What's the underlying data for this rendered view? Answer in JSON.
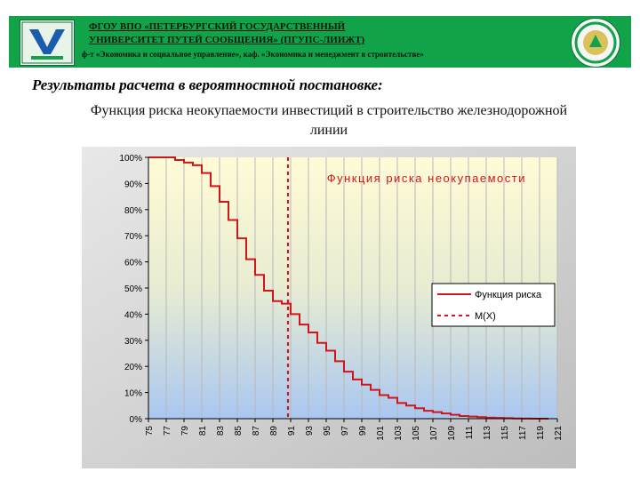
{
  "banner": {
    "line1": "ФГОУ ВПО «ПЕТЕРБУРГСКИЙ ГОСУДАРСТВЕННЫЙ",
    "line2": "УНИВЕРСИТЕТ ПУТЕЙ СООБЩЕНИЯ» (ПГУПС-ЛИИЖТ)",
    "line3": "ф-т «Экономика и социальное управление», каф. «Экономика и менеджмент в строительстве»",
    "left_logo_icon": "university-emblem-icon",
    "right_logo_icon": "anniversary-seal-icon"
  },
  "heading": "Результаты расчета в вероятностной постановке:",
  "subtitle": "Функция риска неокупаемости инвестиций в строительство железнодорожной линии",
  "colors": {
    "banner": "#11a24a",
    "series": "#d0161a",
    "plot_top": "#fffbd6",
    "plot_bottom": "#aac8f0"
  },
  "chart_data": {
    "type": "line",
    "title": "Функция риска неокупаемости",
    "xlabel": "",
    "ylabel": "",
    "xlim": [
      75,
      121
    ],
    "ylim": [
      0,
      100
    ],
    "x_ticks": [
      "75",
      "77",
      "79",
      "81",
      "83",
      "85",
      "87",
      "89",
      "91",
      "93",
      "95",
      "97",
      "99",
      "101",
      "103",
      "105",
      "107",
      "109",
      "111",
      "113",
      "115",
      "117",
      "119",
      "121"
    ],
    "y_ticks": [
      "0%",
      "10%",
      "20%",
      "30%",
      "40%",
      "50%",
      "60%",
      "70%",
      "80%",
      "90%",
      "100%"
    ],
    "grid": "vertical",
    "legend": {
      "position": "right",
      "entries": [
        "Функция риска",
        "M(X)"
      ]
    },
    "series": [
      {
        "name": "Функция риска",
        "style": "step",
        "x": [
          75,
          76,
          78,
          79,
          80,
          81,
          82,
          83,
          84,
          85,
          86,
          87,
          88,
          89,
          90,
          91,
          92,
          93,
          94,
          95,
          96,
          97,
          98,
          99,
          100,
          101,
          102,
          103,
          104,
          105,
          106,
          107,
          108,
          109,
          110,
          111,
          112,
          113,
          114,
          115,
          116,
          117,
          118,
          119,
          120
        ],
        "y": [
          100,
          100,
          99,
          98,
          97,
          94,
          89,
          83,
          76,
          69,
          61,
          55,
          49,
          45,
          44,
          40,
          36,
          33,
          29,
          26,
          22,
          18,
          15,
          13,
          11,
          9,
          8,
          6,
          5,
          4,
          3,
          2.5,
          2,
          1.5,
          1,
          0.8,
          0.6,
          0.4,
          0.3,
          0.2,
          0.1,
          0.05,
          0.02,
          0,
          0
        ]
      },
      {
        "name": "M(X)",
        "style": "dashed-vertical",
        "x_value": 90.7
      }
    ]
  }
}
